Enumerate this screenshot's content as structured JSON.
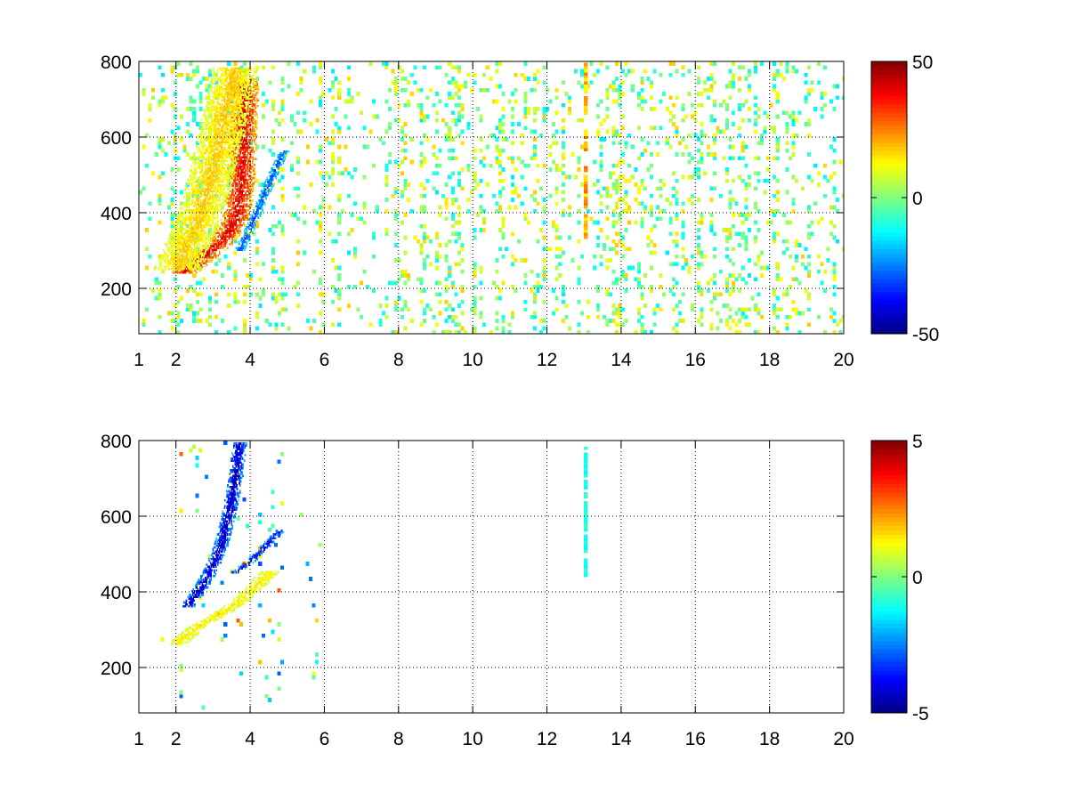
{
  "chart_data": [
    {
      "type": "heatmap",
      "title": "",
      "xlabel": "",
      "ylabel": "",
      "xlim": [
        1,
        20
      ],
      "ylim": [
        80,
        800
      ],
      "x_ticks": [
        1,
        2,
        4,
        6,
        8,
        10,
        12,
        14,
        16,
        18,
        20
      ],
      "y_ticks": [
        200,
        400,
        600,
        800
      ],
      "grid": true,
      "colormap": "jet",
      "clim": [
        -50,
        50
      ],
      "colorbar_ticks": [
        50,
        0,
        -50
      ],
      "features": [
        {
          "name": "positive-curved-band",
          "points": [
            [
              2.2,
              240
            ],
            [
              2.7,
              280
            ],
            [
              3.2,
              320
            ],
            [
              3.6,
              380
            ],
            [
              3.75,
              480
            ],
            [
              3.8,
              600
            ],
            [
              3.85,
              750
            ]
          ],
          "value": 40,
          "spread_x": 0.35
        },
        {
          "name": "warm-halo",
          "points": [
            [
              2.0,
              250
            ],
            [
              2.6,
              380
            ],
            [
              3.0,
              520
            ],
            [
              3.3,
              650
            ],
            [
              3.6,
              780
            ]
          ],
          "value": 18,
          "spread_x": 0.6
        },
        {
          "name": "negative-branch",
          "points": [
            [
              3.7,
              300
            ],
            [
              4.0,
              360
            ],
            [
              4.3,
              430
            ],
            [
              4.6,
              500
            ],
            [
              4.9,
              560
            ]
          ],
          "value": -30,
          "spread_x": 0.12
        },
        {
          "name": "strong-column",
          "x": 13.05,
          "y_range": [
            300,
            800
          ],
          "value": 20
        }
      ],
      "background_noise": {
        "x_range": [
          1,
          20
        ],
        "value_range": [
          -15,
          18
        ],
        "fill_fraction": 0.12
      }
    },
    {
      "type": "heatmap",
      "title": "",
      "xlabel": "",
      "ylabel": "",
      "xlim": [
        1,
        20
      ],
      "ylim": [
        80,
        800
      ],
      "x_ticks": [
        1,
        2,
        4,
        6,
        8,
        10,
        12,
        14,
        16,
        18,
        20
      ],
      "y_ticks": [
        200,
        400,
        600,
        800
      ],
      "grid": true,
      "colormap": "jet",
      "clim": [
        -5,
        5
      ],
      "colorbar_ticks": [
        5,
        0,
        -5
      ],
      "features": [
        {
          "name": "negative-upper-branch",
          "points": [
            [
              2.3,
              360
            ],
            [
              2.6,
              400
            ],
            [
              2.9,
              450
            ],
            [
              3.2,
              520
            ],
            [
              3.4,
              600
            ],
            [
              3.6,
              700
            ],
            [
              3.7,
              790
            ]
          ],
          "value": -4.5,
          "spread_x": 0.18
        },
        {
          "name": "negative-right-branch",
          "points": [
            [
              3.6,
              450
            ],
            [
              4.0,
              480
            ],
            [
              4.4,
              520
            ],
            [
              4.8,
              560
            ]
          ],
          "value": -4,
          "spread_x": 0.12
        },
        {
          "name": "positive-lower-band",
          "points": [
            [
              2.0,
              260
            ],
            [
              2.5,
              300
            ],
            [
              3.0,
              330
            ],
            [
              3.5,
              360
            ],
            [
              4.0,
              400
            ],
            [
              4.5,
              450
            ]
          ],
          "value": 1.5,
          "spread_x": 0.25
        },
        {
          "name": "isolated-column",
          "x": 13.05,
          "y_range": [
            440,
            780
          ],
          "value": -1
        }
      ],
      "background_noise": {
        "x_range": [
          1.5,
          6
        ],
        "value_range": [
          -3,
          3
        ],
        "fill_fraction": 0.02
      }
    }
  ]
}
